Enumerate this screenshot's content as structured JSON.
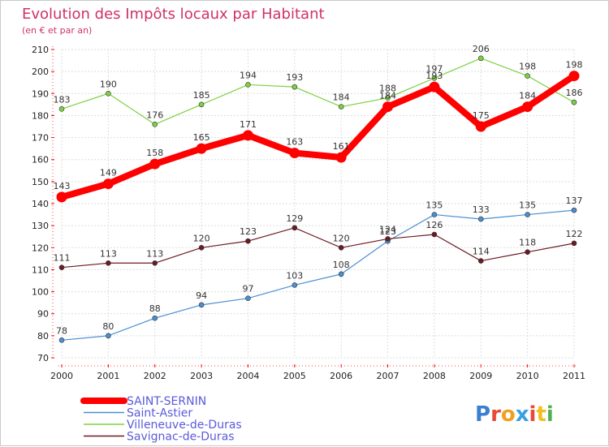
{
  "chart_data": {
    "type": "line",
    "title": "Evolution des Impôts locaux par Habitant",
    "subtitle": "(en € et par an)",
    "xlabel": "",
    "ylabel": "",
    "x": [
      "2000",
      "2001",
      "2002",
      "2003",
      "2004",
      "2005",
      "2006",
      "2007",
      "2008",
      "2009",
      "2010",
      "2011"
    ],
    "yticks": [
      70,
      80,
      90,
      100,
      110,
      120,
      130,
      140,
      150,
      160,
      170,
      180,
      190,
      200,
      210
    ],
    "ylim": [
      70,
      210
    ],
    "grid": true,
    "series": [
      {
        "name": "SAINT-SERNIN",
        "color": "#ff0000",
        "emphasis": true,
        "values": [
          143,
          149,
          158,
          165,
          171,
          163,
          161,
          184,
          193,
          175,
          184,
          198
        ],
        "labels": [
          "143",
          "149",
          "158",
          "165",
          "171",
          "163",
          "161",
          "184",
          "193",
          "175",
          "184",
          "198"
        ]
      },
      {
        "name": "Saint-Astier",
        "color": "#4a90d0",
        "emphasis": false,
        "values": [
          78,
          80,
          88,
          94,
          97,
          103,
          108,
          123,
          135,
          133,
          135,
          137
        ],
        "labels": [
          "78",
          "80",
          "88",
          "94",
          "97",
          "103",
          "108",
          "123",
          "135",
          "133",
          "135",
          "137"
        ]
      },
      {
        "name": "Villeneuve-de-Duras",
        "color": "#7ed040",
        "emphasis": false,
        "values": [
          183,
          190,
          176,
          185,
          194,
          193,
          184,
          188,
          197,
          206,
          198,
          186
        ],
        "labels": [
          "183",
          "190",
          "176",
          "185",
          "194",
          "193",
          "184",
          "188",
          "197",
          "206",
          "198",
          "186"
        ]
      },
      {
        "name": "Savignac-de-Duras",
        "color": "#6b1a22",
        "emphasis": false,
        "values": [
          111,
          113,
          113,
          120,
          123,
          129,
          120,
          124,
          126,
          114,
          118,
          122
        ],
        "labels": [
          "111",
          "113",
          "113",
          "120",
          "123",
          "129",
          "120",
          "124",
          "126",
          "114",
          "118",
          "122"
        ]
      }
    ]
  },
  "legend": {
    "items": [
      {
        "label": "SAINT-SERNIN",
        "color": "#ff0000",
        "text_color": "#5a5adc"
      },
      {
        "label": "Saint-Astier",
        "color": "#4a90d0",
        "text_color": "#5a5adc"
      },
      {
        "label": "Villeneuve-de-Duras",
        "color": "#7ed040",
        "text_color": "#5a5adc"
      },
      {
        "label": "Savignac-de-Duras",
        "color": "#6b1a22",
        "text_color": "#5a5adc"
      }
    ]
  },
  "brand": {
    "letters": [
      "P",
      "r",
      "o",
      "x",
      "i",
      "t",
      "i"
    ],
    "colors": [
      "#3a7fd0",
      "#e84a3a",
      "#f0a020",
      "#3aa0e0",
      "#e84a3a",
      "#f0c020",
      "#50b050"
    ]
  }
}
